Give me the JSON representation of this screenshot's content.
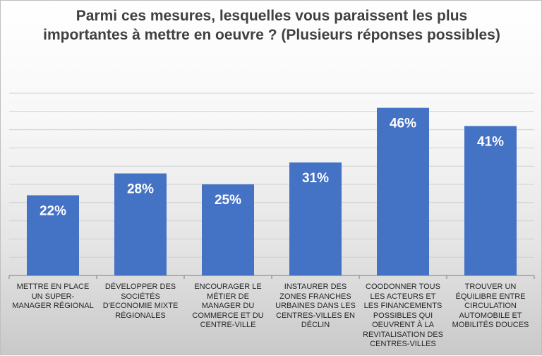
{
  "chart_data": {
    "type": "bar",
    "title": "Parmi ces mesures, lesquelles vous paraissent les plus importantes à mettre en oeuvre ? (Plusieurs réponses possibles)",
    "categories": [
      "METTRE EN PLACE UN SUPER-MANAGER RÉGIONAL",
      "DÉVELOPPER DES SOCIÉTÉS D'ECONOMIE MIXTE RÉGIONALES",
      "ENCOURAGER LE MÉTIER DE MANAGER DU COMMERCE ET DU CENTRE-VILLE",
      "INSTAURER DES ZONES FRANCHES URBAINES DANS LES CENTRES-VILLES EN DÉCLIN",
      "COODONNER TOUS LES ACTEURS ET LES FINANCEMENTS POSSIBLES QUI OEUVRENT À LA REVITALISATION DES CENTRES-VILLES",
      "TROUVER UN ÉQUILIBRE ENTRE CIRCULATION AUTOMOBILE ET MOBILITÉS DOUCES"
    ],
    "values": [
      22,
      28,
      25,
      31,
      46,
      41
    ],
    "data_labels": [
      "22%",
      "28%",
      "25%",
      "31%",
      "46%",
      "41%"
    ],
    "ylim": [
      0,
      50
    ],
    "grid": true,
    "legend": "none",
    "bar_color": "#4472c4"
  }
}
